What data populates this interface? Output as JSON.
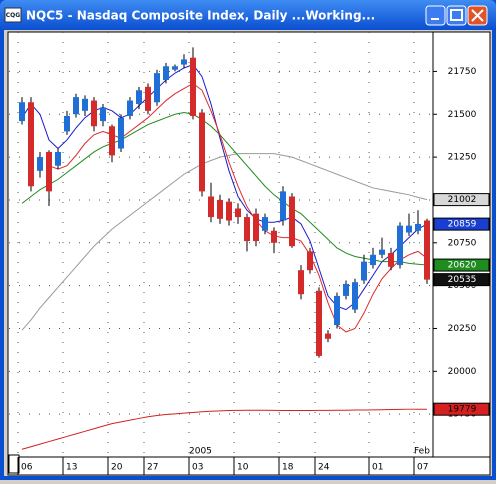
{
  "window": {
    "title": "NQC5 - Nasdaq Composite Index, Daily ...Working...",
    "icon": "CQG"
  },
  "chart_data": {
    "type": "candlestick",
    "categories": [
      "06",
      null,
      null,
      null,
      null,
      "13",
      null,
      null,
      null,
      null,
      "20",
      null,
      null,
      null,
      "27",
      null,
      null,
      null,
      null,
      "03",
      null,
      null,
      null,
      null,
      "10",
      null,
      null,
      null,
      null,
      "18",
      null,
      null,
      null,
      "24",
      null,
      null,
      null,
      null,
      null,
      "01",
      null,
      null,
      null,
      null,
      "07",
      null
    ],
    "x_markers": [
      {
        "label": "2005",
        "category": "03"
      },
      {
        "label": "Feb",
        "category": "07"
      }
    ],
    "open": [
      21460,
      21570,
      21170,
      21280,
      21200,
      21400,
      21500,
      21520,
      21580,
      21460,
      21430,
      21300,
      21490,
      21560,
      21660,
      21570,
      21700,
      21760,
      21790,
      21830,
      21510,
      21020,
      21000,
      20990,
      20950,
      20900,
      20920,
      20820,
      20820,
      20880,
      21020,
      20590,
      20700,
      20470,
      20220,
      20270,
      20440,
      20360,
      20530,
      20620,
      20680,
      20690,
      20620,
      20810,
      20820,
      20880
    ],
    "high": [
      21600,
      21600,
      21280,
      21290,
      21300,
      21520,
      21620,
      21610,
      21600,
      21560,
      21440,
      21500,
      21600,
      21660,
      21680,
      21760,
      21800,
      21790,
      21850,
      21890,
      21530,
      21100,
      21030,
      21010,
      20980,
      20920,
      20950,
      20920,
      20840,
      21080,
      21040,
      20620,
      20720,
      20490,
      20240,
      20460,
      20530,
      20540,
      20680,
      20720,
      20780,
      20720,
      20870,
      20920,
      20940,
      20890
    ],
    "low": [
      21440,
      21050,
      21130,
      20965,
      21180,
      21380,
      21480,
      21490,
      21400,
      21430,
      21220,
      21280,
      21470,
      21530,
      21500,
      21550,
      21680,
      21750,
      21770,
      21470,
      21020,
      20870,
      20860,
      20850,
      20860,
      20700,
      20730,
      20800,
      20690,
      20850,
      20720,
      20420,
      20570,
      20080,
      20170,
      20250,
      20420,
      20340,
      20510,
      20600,
      20660,
      20590,
      20600,
      20790,
      20800,
      20510
    ],
    "close": [
      21570,
      21080,
      21250,
      21050,
      21280,
      21490,
      21600,
      21590,
      21430,
      21540,
      21260,
      21480,
      21580,
      21640,
      21520,
      21740,
      21780,
      21780,
      21820,
      21490,
      21050,
      20900,
      20890,
      20880,
      20900,
      20760,
      20760,
      20900,
      20750,
      21050,
      20730,
      20450,
      20590,
      20090,
      20190,
      20440,
      20510,
      20520,
      20640,
      20680,
      20710,
      20610,
      20850,
      20850,
      20860,
      20535
    ],
    "up_color": "#1f6fd6",
    "down_color": "#d42a2a",
    "close_box_color": "#111111",
    "lines": [
      {
        "color": "#9a9a9a",
        "values": [
          20240,
          20300,
          20370,
          20430,
          20490,
          20550,
          20610,
          20670,
          20730,
          20780,
          20830,
          20870,
          20910,
          20950,
          20990,
          21030,
          21070,
          21110,
          21150,
          21180,
          21210,
          21230,
          21250,
          21260,
          21270,
          21270,
          21270,
          21270,
          21270,
          21260,
          21250,
          21230,
          21210,
          21190,
          21170,
          21150,
          21130,
          21110,
          21090,
          21070,
          21060,
          21050,
          21040,
          21030,
          21015,
          21002
        ]
      },
      {
        "color": "#1a1ad0",
        "values": [
          21480,
          21560,
          21500,
          21350,
          21300,
          21350,
          21420,
          21480,
          21520,
          21540,
          21520,
          21480,
          21500,
          21550,
          21600,
          21650,
          21700,
          21740,
          21770,
          21790,
          21720,
          21560,
          21360,
          21170,
          21020,
          20940,
          20890,
          20870,
          20870,
          20880,
          20900,
          20860,
          20760,
          20600,
          20440,
          20380,
          20360,
          20400,
          20480,
          20560,
          20640,
          20680,
          20730,
          20780,
          20830,
          20859
        ]
      },
      {
        "color": "#1e8c1e",
        "values": [
          20980,
          21020,
          21060,
          21090,
          21120,
          21160,
          21200,
          21240,
          21280,
          21310,
          21330,
          21350,
          21380,
          21410,
          21440,
          21460,
          21480,
          21500,
          21510,
          21500,
          21470,
          21430,
          21380,
          21320,
          21260,
          21200,
          21140,
          21080,
          21030,
          20990,
          20950,
          20920,
          20870,
          20820,
          20770,
          20720,
          20690,
          20670,
          20660,
          20650,
          20640,
          20640,
          20640,
          20630,
          20625,
          20620
        ]
      },
      {
        "color": "#e02a2a",
        "values": [
          null,
          null,
          null,
          21200,
          21180,
          21200,
          21260,
          21330,
          21380,
          21400,
          21380,
          21360,
          21400,
          21440,
          21480,
          21530,
          21580,
          21620,
          21650,
          21680,
          21640,
          21520,
          21380,
          21220,
          21080,
          20960,
          20880,
          20820,
          20790,
          20780,
          20780,
          20760,
          20680,
          20560,
          20400,
          20270,
          20230,
          20250,
          20340,
          20450,
          20540,
          20600,
          20650,
          20680,
          20700,
          20660
        ]
      },
      {
        "color": "#d42020",
        "values": [
          19545,
          19560,
          19575,
          19590,
          19605,
          19620,
          19635,
          19650,
          19665,
          19680,
          19695,
          19705,
          19715,
          19725,
          19735,
          19742,
          19748,
          19752,
          19756,
          19760,
          19764,
          19767,
          19769,
          19771,
          19772,
          19773,
          19773,
          19773,
          19772,
          19771,
          19771,
          19771,
          19771,
          19772,
          19772,
          19773,
          19773,
          19774,
          19774,
          19775,
          19776,
          19777,
          19778,
          19779,
          19779,
          19779
        ]
      }
    ],
    "last_value_boxes": [
      {
        "line": 0,
        "bg": "#d8d8d8",
        "fg": "#000000"
      },
      {
        "line": 1,
        "bg": "#1a3fd0",
        "fg": "#ffffff"
      },
      {
        "line": 2,
        "bg": "#1e8c1e",
        "fg": "#ffffff"
      },
      {
        "line": 4,
        "bg": "#d42020",
        "fg": "#000000"
      }
    ],
    "ylim": [
      19500,
      21980
    ],
    "yticks": [
      19750,
      20000,
      20250,
      20500,
      20750,
      21000,
      21250,
      21500,
      21750
    ],
    "grid": true
  }
}
